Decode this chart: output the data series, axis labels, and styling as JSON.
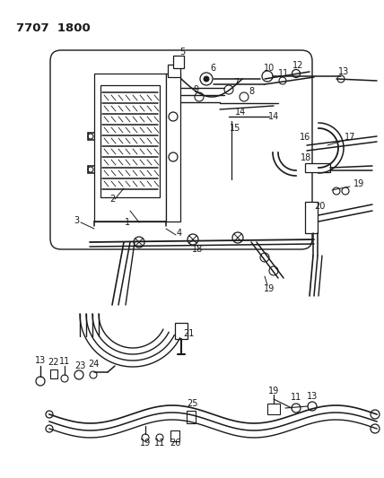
{
  "title": "7707  1800",
  "bg_color": "#ffffff",
  "line_color": "#1a1a1a",
  "text_color": "#1a1a1a",
  "fig_width": 4.28,
  "fig_height": 5.33,
  "dpi": 100
}
